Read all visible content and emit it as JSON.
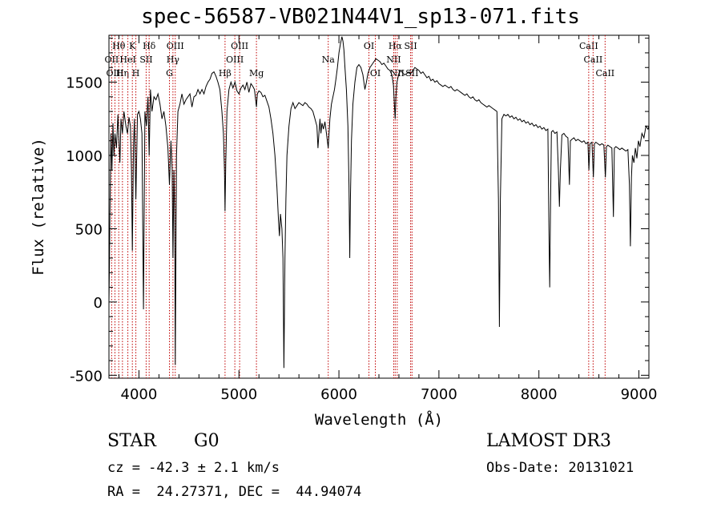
{
  "chart_data": {
    "type": "line",
    "title": "spec-56587-VB021N44V1_sp13-071.fits",
    "xlabel": "Wavelength (Å)",
    "ylabel": "Flux (relative)",
    "xlim": [
      3700,
      9100
    ],
    "ylim": [
      -520,
      1820
    ],
    "xticks": [
      4000,
      5000,
      6000,
      7000,
      8000,
      9000
    ],
    "yticks": [
      -500,
      0,
      500,
      1000,
      1500
    ],
    "lines": [
      {
        "label": "Hθ",
        "wl": 3798,
        "row": 0
      },
      {
        "label": "OII",
        "wl": 3727,
        "row": 1
      },
      {
        "label": "OIII",
        "wl": 3760,
        "row": 2
      },
      {
        "label": "Hη",
        "wl": 3835,
        "row": 2
      },
      {
        "label": "K",
        "wl": 3934,
        "row": 0
      },
      {
        "label": "HeI",
        "wl": 3889,
        "row": 1
      },
      {
        "label": "H",
        "wl": 3969,
        "row": 2
      },
      {
        "label": "SII",
        "wl": 4072,
        "row": 1
      },
      {
        "label": "Hδ",
        "wl": 4102,
        "row": 0
      },
      {
        "label": "OIII",
        "wl": 4363,
        "row": 0
      },
      {
        "label": "Hγ",
        "wl": 4340,
        "row": 1
      },
      {
        "label": "G",
        "wl": 4305,
        "row": 2
      },
      {
        "label": "Hβ",
        "wl": 4861,
        "row": 2
      },
      {
        "label": "OIII",
        "wl": 5007,
        "row": 0
      },
      {
        "label": "OIII",
        "wl": 4959,
        "row": 1
      },
      {
        "label": "Mg",
        "wl": 5175,
        "row": 2
      },
      {
        "label": "Na",
        "wl": 5893,
        "row": 1
      },
      {
        "label": "OI",
        "wl": 6300,
        "row": 0
      },
      {
        "label": "OI",
        "wl": 6364,
        "row": 2
      },
      {
        "label": "NII",
        "wl": 6548,
        "row": 1
      },
      {
        "label": "Hα",
        "wl": 6563,
        "row": 0
      },
      {
        "label": "NII",
        "wl": 6583,
        "row": 2
      },
      {
        "label": "SII",
        "wl": 6717,
        "row": 0
      },
      {
        "label": "SII",
        "wl": 6731,
        "row": 2
      },
      {
        "label": "CaII",
        "wl": 8498,
        "row": 0
      },
      {
        "label": "CaII",
        "wl": 8542,
        "row": 1
      },
      {
        "label": "CaII",
        "wl": 8662,
        "row": 2
      }
    ],
    "spectrum": [
      [
        3700,
        0
      ],
      [
        3705,
        250
      ],
      [
        3710,
        600
      ],
      [
        3720,
        1150
      ],
      [
        3730,
        900
      ],
      [
        3740,
        1220
      ],
      [
        3750,
        1000
      ],
      [
        3760,
        1150
      ],
      [
        3775,
        1050
      ],
      [
        3790,
        1280
      ],
      [
        3800,
        1100
      ],
      [
        3810,
        950
      ],
      [
        3820,
        1250
      ],
      [
        3835,
        1150
      ],
      [
        3850,
        1300
      ],
      [
        3870,
        1200
      ],
      [
        3885,
        1150
      ],
      [
        3900,
        1260
      ],
      [
        3915,
        1200
      ],
      [
        3925,
        900
      ],
      [
        3934,
        350
      ],
      [
        3945,
        1050
      ],
      [
        3955,
        1250
      ],
      [
        3969,
        700
      ],
      [
        3985,
        1280
      ],
      [
        4000,
        1300
      ],
      [
        4015,
        1250
      ],
      [
        4030,
        1150
      ],
      [
        4045,
        -50
      ],
      [
        4060,
        1300
      ],
      [
        4075,
        1200
      ],
      [
        4090,
        1400
      ],
      [
        4102,
        1000
      ],
      [
        4115,
        1450
      ],
      [
        4130,
        1300
      ],
      [
        4150,
        1400
      ],
      [
        4170,
        1380
      ],
      [
        4190,
        1420
      ],
      [
        4210,
        1350
      ],
      [
        4230,
        1250
      ],
      [
        4250,
        1300
      ],
      [
        4270,
        1200
      ],
      [
        4290,
        1050
      ],
      [
        4305,
        800
      ],
      [
        4320,
        1100
      ],
      [
        4332,
        900
      ],
      [
        4340,
        300
      ],
      [
        4350,
        900
      ],
      [
        4358,
        600
      ],
      [
        4363,
        -430
      ],
      [
        4375,
        1000
      ],
      [
        4390,
        1300
      ],
      [
        4410,
        1350
      ],
      [
        4430,
        1420
      ],
      [
        4450,
        1350
      ],
      [
        4470,
        1380
      ],
      [
        4490,
        1400
      ],
      [
        4510,
        1420
      ],
      [
        4530,
        1330
      ],
      [
        4550,
        1400
      ],
      [
        4570,
        1410
      ],
      [
        4590,
        1450
      ],
      [
        4610,
        1420
      ],
      [
        4630,
        1450
      ],
      [
        4650,
        1420
      ],
      [
        4670,
        1470
      ],
      [
        4690,
        1500
      ],
      [
        4710,
        1520
      ],
      [
        4730,
        1560
      ],
      [
        4750,
        1570
      ],
      [
        4770,
        1540
      ],
      [
        4790,
        1500
      ],
      [
        4810,
        1450
      ],
      [
        4830,
        1300
      ],
      [
        4845,
        1150
      ],
      [
        4855,
        900
      ],
      [
        4861,
        620
      ],
      [
        4868,
        950
      ],
      [
        4880,
        1300
      ],
      [
        4900,
        1450
      ],
      [
        4920,
        1500
      ],
      [
        4940,
        1460
      ],
      [
        4960,
        1500
      ],
      [
        4980,
        1440
      ],
      [
        5000,
        1420
      ],
      [
        5020,
        1460
      ],
      [
        5040,
        1480
      ],
      [
        5060,
        1450
      ],
      [
        5080,
        1500
      ],
      [
        5100,
        1430
      ],
      [
        5120,
        1490
      ],
      [
        5140,
        1470
      ],
      [
        5155,
        1450
      ],
      [
        5167,
        1380
      ],
      [
        5175,
        1330
      ],
      [
        5184,
        1420
      ],
      [
        5200,
        1440
      ],
      [
        5220,
        1430
      ],
      [
        5240,
        1400
      ],
      [
        5260,
        1410
      ],
      [
        5280,
        1370
      ],
      [
        5300,
        1330
      ],
      [
        5320,
        1250
      ],
      [
        5340,
        1150
      ],
      [
        5360,
        1000
      ],
      [
        5380,
        780
      ],
      [
        5395,
        560
      ],
      [
        5405,
        450
      ],
      [
        5415,
        600
      ],
      [
        5430,
        500
      ],
      [
        5440,
        300
      ],
      [
        5450,
        -450
      ],
      [
        5460,
        300
      ],
      [
        5470,
        700
      ],
      [
        5480,
        1000
      ],
      [
        5500,
        1200
      ],
      [
        5520,
        1320
      ],
      [
        5540,
        1360
      ],
      [
        5560,
        1320
      ],
      [
        5580,
        1340
      ],
      [
        5600,
        1360
      ],
      [
        5620,
        1350
      ],
      [
        5640,
        1340
      ],
      [
        5660,
        1360
      ],
      [
        5680,
        1350
      ],
      [
        5700,
        1330
      ],
      [
        5720,
        1320
      ],
      [
        5740,
        1300
      ],
      [
        5760,
        1250
      ],
      [
        5780,
        1200
      ],
      [
        5790,
        1050
      ],
      [
        5800,
        1150
      ],
      [
        5810,
        1250
      ],
      [
        5820,
        1150
      ],
      [
        5830,
        1220
      ],
      [
        5845,
        1180
      ],
      [
        5860,
        1230
      ],
      [
        5875,
        1150
      ],
      [
        5893,
        1050
      ],
      [
        5910,
        1250
      ],
      [
        5925,
        1350
      ],
      [
        5940,
        1400
      ],
      [
        5955,
        1450
      ],
      [
        5970,
        1520
      ],
      [
        5985,
        1600
      ],
      [
        6000,
        1700
      ],
      [
        6015,
        1760
      ],
      [
        6030,
        1810
      ],
      [
        6040,
        1780
      ],
      [
        6050,
        1720
      ],
      [
        6060,
        1600
      ],
      [
        6075,
        1450
      ],
      [
        6090,
        1200
      ],
      [
        6100,
        800
      ],
      [
        6108,
        300
      ],
      [
        6115,
        700
      ],
      [
        6125,
        1100
      ],
      [
        6140,
        1350
      ],
      [
        6160,
        1500
      ],
      [
        6180,
        1600
      ],
      [
        6200,
        1620
      ],
      [
        6220,
        1600
      ],
      [
        6240,
        1550
      ],
      [
        6260,
        1450
      ],
      [
        6275,
        1500
      ],
      [
        6290,
        1560
      ],
      [
        6310,
        1600
      ],
      [
        6330,
        1620
      ],
      [
        6350,
        1640
      ],
      [
        6370,
        1660
      ],
      [
        6390,
        1650
      ],
      [
        6410,
        1640
      ],
      [
        6430,
        1620
      ],
      [
        6450,
        1630
      ],
      [
        6470,
        1610
      ],
      [
        6490,
        1590
      ],
      [
        6510,
        1580
      ],
      [
        6530,
        1550
      ],
      [
        6545,
        1480
      ],
      [
        6555,
        1350
      ],
      [
        6563,
        1250
      ],
      [
        6570,
        1400
      ],
      [
        6580,
        1500
      ],
      [
        6600,
        1560
      ],
      [
        6620,
        1580
      ],
      [
        6640,
        1560
      ],
      [
        6660,
        1550
      ],
      [
        6680,
        1560
      ],
      [
        6700,
        1570
      ],
      [
        6720,
        1560
      ],
      [
        6740,
        1580
      ],
      [
        6760,
        1600
      ],
      [
        6780,
        1590
      ],
      [
        6800,
        1580
      ],
      [
        6820,
        1560
      ],
      [
        6840,
        1570
      ],
      [
        6860,
        1550
      ],
      [
        6880,
        1530
      ],
      [
        6900,
        1540
      ],
      [
        6920,
        1510
      ],
      [
        6940,
        1520
      ],
      [
        6960,
        1500
      ],
      [
        6980,
        1510
      ],
      [
        7000,
        1490
      ],
      [
        7020,
        1480
      ],
      [
        7040,
        1470
      ],
      [
        7060,
        1480
      ],
      [
        7080,
        1470
      ],
      [
        7100,
        1460
      ],
      [
        7120,
        1470
      ],
      [
        7140,
        1450
      ],
      [
        7160,
        1440
      ],
      [
        7180,
        1450
      ],
      [
        7200,
        1440
      ],
      [
        7220,
        1430
      ],
      [
        7240,
        1420
      ],
      [
        7260,
        1410
      ],
      [
        7280,
        1420
      ],
      [
        7300,
        1400
      ],
      [
        7320,
        1390
      ],
      [
        7340,
        1400
      ],
      [
        7360,
        1380
      ],
      [
        7380,
        1370
      ],
      [
        7400,
        1380
      ],
      [
        7420,
        1360
      ],
      [
        7440,
        1350
      ],
      [
        7460,
        1340
      ],
      [
        7480,
        1330
      ],
      [
        7500,
        1340
      ],
      [
        7520,
        1330
      ],
      [
        7540,
        1320
      ],
      [
        7560,
        1310
      ],
      [
        7580,
        1300
      ],
      [
        7595,
        700
      ],
      [
        7605,
        -170
      ],
      [
        7615,
        700
      ],
      [
        7630,
        1250
      ],
      [
        7650,
        1280
      ],
      [
        7670,
        1270
      ],
      [
        7690,
        1280
      ],
      [
        7710,
        1260
      ],
      [
        7730,
        1270
      ],
      [
        7750,
        1250
      ],
      [
        7770,
        1260
      ],
      [
        7790,
        1240
      ],
      [
        7810,
        1250
      ],
      [
        7830,
        1230
      ],
      [
        7850,
        1240
      ],
      [
        7870,
        1220
      ],
      [
        7890,
        1230
      ],
      [
        7910,
        1210
      ],
      [
        7930,
        1220
      ],
      [
        7950,
        1200
      ],
      [
        7970,
        1210
      ],
      [
        7990,
        1190
      ],
      [
        8010,
        1200
      ],
      [
        8030,
        1180
      ],
      [
        8050,
        1190
      ],
      [
        8070,
        1170
      ],
      [
        8090,
        1180
      ],
      [
        8100,
        500
      ],
      [
        8108,
        100
      ],
      [
        8115,
        600
      ],
      [
        8125,
        1160
      ],
      [
        8140,
        1170
      ],
      [
        8160,
        1150
      ],
      [
        8180,
        1160
      ],
      [
        8195,
        900
      ],
      [
        8205,
        650
      ],
      [
        8215,
        900
      ],
      [
        8230,
        1140
      ],
      [
        8250,
        1150
      ],
      [
        8270,
        1130
      ],
      [
        8290,
        1120
      ],
      [
        8305,
        800
      ],
      [
        8315,
        1100
      ],
      [
        8330,
        1110
      ],
      [
        8350,
        1120
      ],
      [
        8370,
        1100
      ],
      [
        8390,
        1110
      ],
      [
        8410,
        1100
      ],
      [
        8430,
        1090
      ],
      [
        8450,
        1100
      ],
      [
        8470,
        1080
      ],
      [
        8490,
        1090
      ],
      [
        8500,
        900
      ],
      [
        8510,
        1080
      ],
      [
        8530,
        1090
      ],
      [
        8545,
        850
      ],
      [
        8555,
        1080
      ],
      [
        8570,
        1090
      ],
      [
        8590,
        1080
      ],
      [
        8610,
        1070
      ],
      [
        8630,
        1080
      ],
      [
        8650,
        1070
      ],
      [
        8665,
        850
      ],
      [
        8675,
        1060
      ],
      [
        8690,
        1070
      ],
      [
        8710,
        1060
      ],
      [
        8730,
        1050
      ],
      [
        8745,
        580
      ],
      [
        8755,
        1050
      ],
      [
        8770,
        1060
      ],
      [
        8790,
        1050
      ],
      [
        8810,
        1040
      ],
      [
        8830,
        1050
      ],
      [
        8850,
        1040
      ],
      [
        8870,
        1030
      ],
      [
        8890,
        1040
      ],
      [
        8905,
        800
      ],
      [
        8915,
        380
      ],
      [
        8925,
        850
      ],
      [
        8935,
        1000
      ],
      [
        8950,
        950
      ],
      [
        8965,
        1050
      ],
      [
        8980,
        980
      ],
      [
        8995,
        1100
      ],
      [
        9010,
        1060
      ],
      [
        9030,
        1150
      ],
      [
        9050,
        1120
      ],
      [
        9070,
        1200
      ],
      [
        9090,
        1180
      ],
      [
        9100,
        1200
      ]
    ]
  },
  "info": {
    "object_class": "STAR",
    "subclass": "G0",
    "cz": "cz = -42.3 ± 2.1 km/s",
    "coords": "RA =  24.27371, DEC =  44.94074",
    "survey": "LAMOST DR3",
    "obs_date": "Obs-Date: 20131021"
  }
}
